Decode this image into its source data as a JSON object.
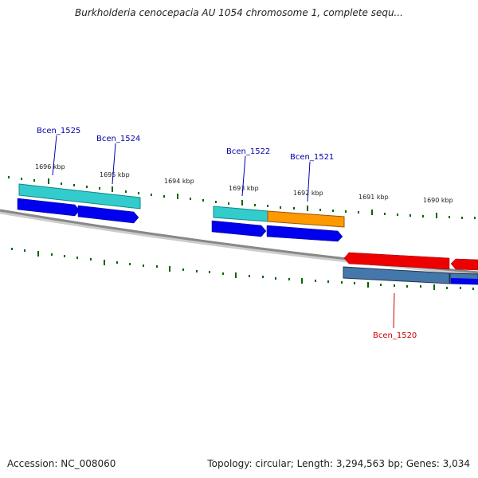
{
  "title": "Burkholderia cenocepacia AU 1054 chromosome 1, complete sequ...",
  "footer": {
    "accession": "Accession: NC_008060",
    "topology": "Topology: circular; Length: 3,294,563 bp; Genes: 3,034"
  },
  "ticks_top": [
    {
      "label": "1696 kbp",
      "kbp": 1696
    },
    {
      "label": "1695 kbp",
      "kbp": 1695
    },
    {
      "label": "1694 kbp",
      "kbp": 1694
    },
    {
      "label": "1693 kbp",
      "kbp": 1693
    },
    {
      "label": "1692 kbp",
      "kbp": 1692
    },
    {
      "label": "1691 kbp",
      "kbp": 1691
    },
    {
      "label": "1690 kbp",
      "kbp": 1690
    }
  ],
  "gene_labels": [
    {
      "name": "Bcen_1525",
      "strand": "forward",
      "color": "#0000aa"
    },
    {
      "name": "Bcen_1524",
      "strand": "forward",
      "color": "#0000aa"
    },
    {
      "name": "Bcen_1522",
      "strand": "forward",
      "color": "#0000aa"
    },
    {
      "name": "Bcen_1521",
      "strand": "forward",
      "color": "#0000aa"
    },
    {
      "name": "Bcen_1520",
      "strand": "reverse",
      "color": "#cc0000"
    }
  ],
  "colors": {
    "forward_cds": "#0000ee",
    "reverse_cds": "#ee0000",
    "cog_cyan": "#33cccc",
    "cog_orange": "#ff9900",
    "cog_steelblue": "#4477aa",
    "backbone": "#888888",
    "tick": "#006600"
  }
}
